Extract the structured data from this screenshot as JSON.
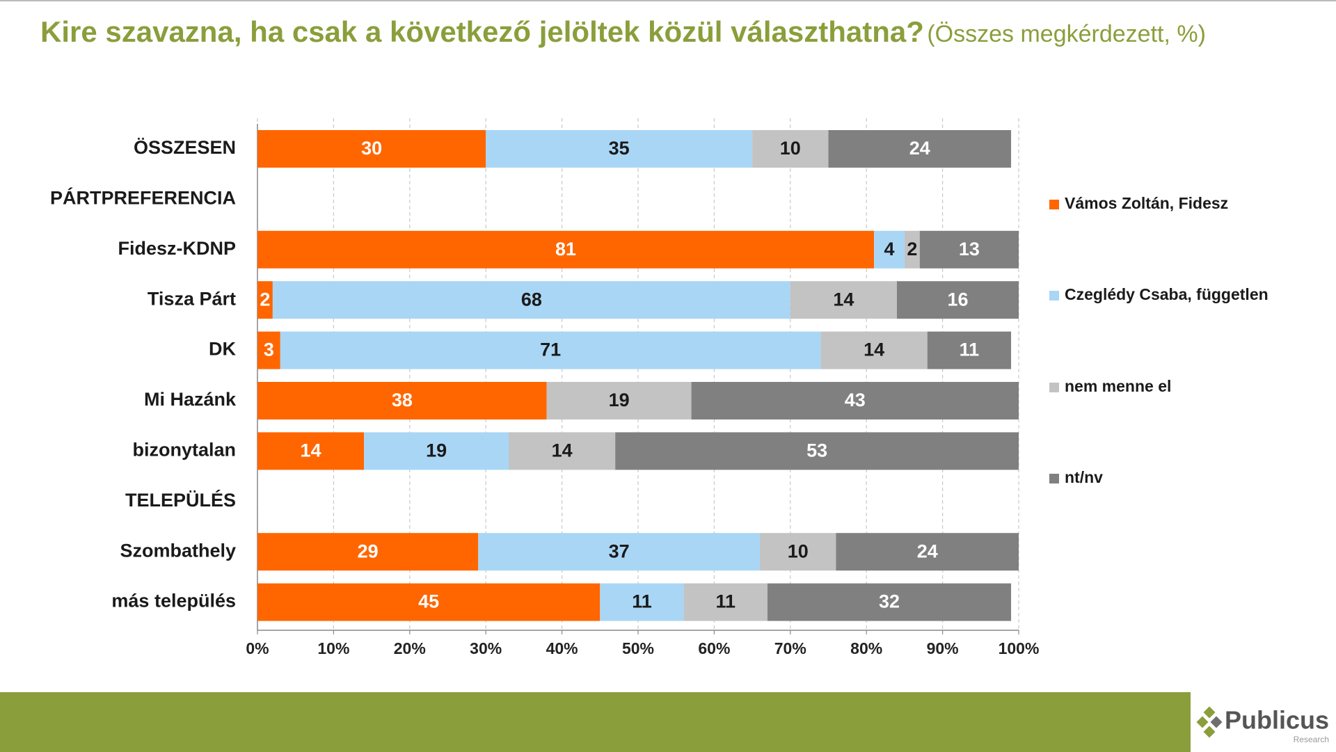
{
  "chart_data": {
    "type": "stacked-bar-horizontal",
    "title": "Kire szavazna, ha csak a következő jelöltek közül választhatna?",
    "subtitle": "(Összes megkérdezett, %)",
    "categories": [
      "ÖSSZESEN",
      "PÁRTPREFERENCIA",
      "Fidesz-KDNP",
      "Tisza Párt",
      "DK",
      "Mi Hazánk",
      "bizonytalan",
      "TELEPÜLÉS",
      "Szombathely",
      "más település"
    ],
    "series": [
      {
        "name": "Vámos Zoltán, Fidesz",
        "color": "#ff6600",
        "label_color": "#ffffff",
        "values": [
          30,
          null,
          81,
          2,
          3,
          38,
          14,
          null,
          29,
          45
        ]
      },
      {
        "name": "Czeglédy Csaba, független",
        "color": "#a9d6f5",
        "label_color": "#1a1a1a",
        "values": [
          35,
          null,
          4,
          68,
          71,
          null,
          19,
          null,
          37,
          11
        ]
      },
      {
        "name": "nem menne el",
        "color": "#c3c3c3",
        "label_color": "#1a1a1a",
        "values": [
          10,
          null,
          2,
          14,
          14,
          19,
          14,
          null,
          10,
          11
        ]
      },
      {
        "name": "nt/nv",
        "color": "#808080",
        "label_color": "#ffffff",
        "values": [
          24,
          null,
          13,
          16,
          11,
          43,
          53,
          null,
          24,
          32
        ]
      }
    ],
    "xlim": [
      0,
      100
    ],
    "xticks": [
      {
        "value": 0,
        "label": "0%"
      },
      {
        "value": 10,
        "label": "10%"
      },
      {
        "value": 20,
        "label": "20%"
      },
      {
        "value": 30,
        "label": "30%"
      },
      {
        "value": 40,
        "label": "40%"
      },
      {
        "value": 50,
        "label": "50%"
      },
      {
        "value": 60,
        "label": "60%"
      },
      {
        "value": 70,
        "label": "70%"
      },
      {
        "value": 80,
        "label": "80%"
      },
      {
        "value": 90,
        "label": "90%"
      },
      {
        "value": 100,
        "label": "100%"
      }
    ],
    "grid": true,
    "legend": "right"
  },
  "footer": {
    "brand": "Publicus",
    "tagline": "Research"
  }
}
